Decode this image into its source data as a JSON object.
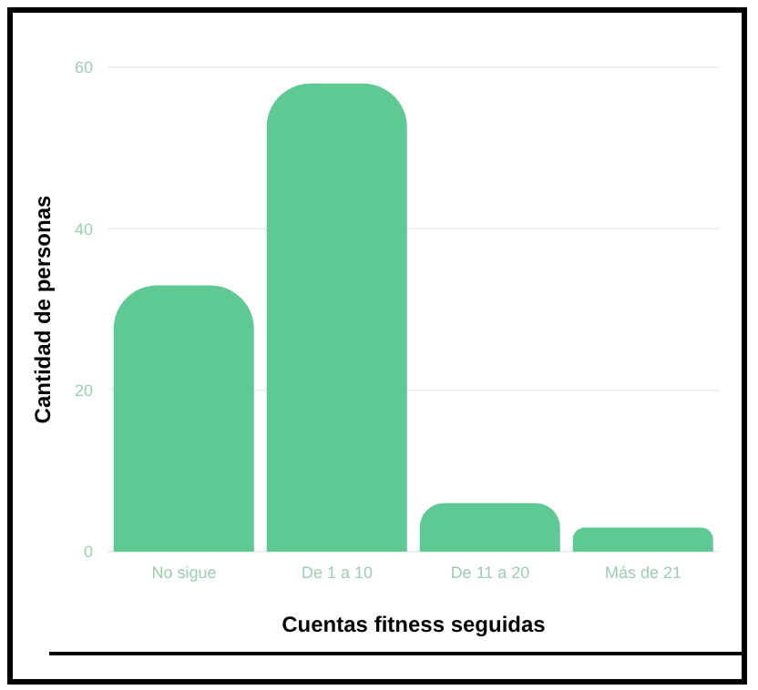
{
  "chart_data": {
    "type": "bar",
    "xlabel": "Cuentas fitness seguidas",
    "ylabel": "Cantidad de personas",
    "categories": [
      "No sigue",
      "De 1 a 10",
      "De 11 a 20",
      "Más de 21"
    ],
    "values": [
      33,
      58,
      6,
      3
    ],
    "color": "#5ec993",
    "ylim": [
      0,
      60
    ],
    "yticks": [
      0,
      20,
      40,
      60
    ],
    "grid": "y"
  }
}
